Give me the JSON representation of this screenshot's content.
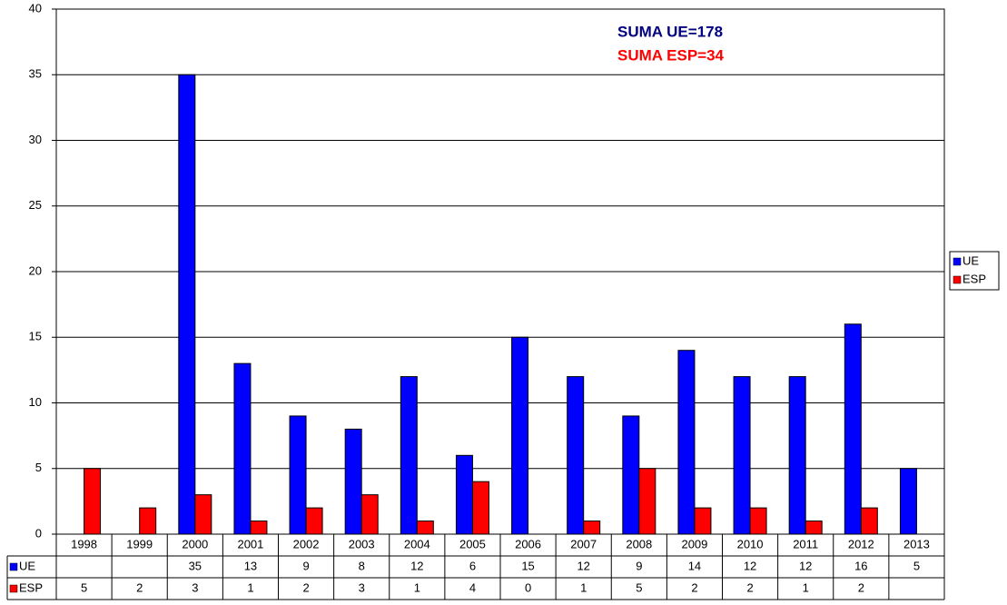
{
  "chart_data": {
    "type": "bar",
    "categories": [
      "1998",
      "1999",
      "2000",
      "2001",
      "2002",
      "2003",
      "2004",
      "2005",
      "2006",
      "2007",
      "2008",
      "2009",
      "2010",
      "2011",
      "2012",
      "2013"
    ],
    "series": [
      {
        "name": "UE",
        "color": "#0000ff",
        "values": [
          null,
          null,
          35,
          13,
          9,
          8,
          12,
          6,
          15,
          12,
          9,
          14,
          12,
          12,
          16,
          5
        ]
      },
      {
        "name": "ESP",
        "color": "#ff0000",
        "values": [
          5,
          2,
          3,
          1,
          2,
          3,
          1,
          4,
          0,
          1,
          5,
          2,
          2,
          1,
          2,
          null
        ]
      }
    ],
    "annotations": [
      {
        "text": "SUMA UE=178",
        "color": "#000080"
      },
      {
        "text": "SUMA ESP=34",
        "color": "#ff0000"
      }
    ],
    "ylim": [
      0,
      40
    ],
    "yticks": [
      0,
      5,
      10,
      15,
      20,
      25,
      30,
      35,
      40
    ],
    "grid": true,
    "legend": "right",
    "data_table": true
  }
}
